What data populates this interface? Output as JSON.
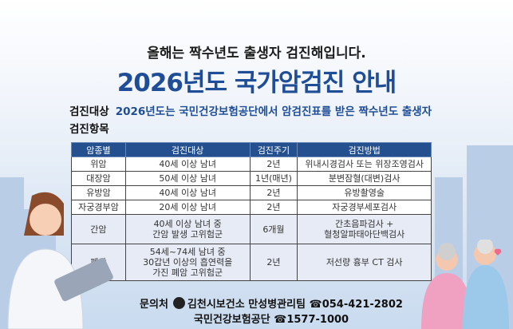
{
  "header": {
    "subtitle": "올해는 짝수년도 출생자 검진해입니다.",
    "title": "2026년도 국가암검진 안내"
  },
  "target": {
    "label": "검진대상",
    "text": "2026년도는 국민건강보험공단에서 암검진표를 받은 짝수년도 출생자"
  },
  "items_label": "검진항목",
  "table": {
    "headers": [
      "암종별",
      "검진대상",
      "검진주기",
      "검진방법"
    ],
    "rows": [
      [
        "위암",
        "40세 이상 남녀",
        "2년",
        "위내시경검사 또는 위장조영검사"
      ],
      [
        "대장암",
        "50세 이상 남녀",
        "1년(매년)",
        "분변잠혈(대변)검사"
      ],
      [
        "유방암",
        "40세 이상 남녀",
        "2년",
        "유방촬영술"
      ],
      [
        "자궁경부암",
        "20세 이상 남녀",
        "2년",
        "자궁경부세포검사"
      ],
      [
        "간암",
        "40세 이상 남녀 중\n간암 발생 고위험군",
        "6개월",
        "간초음파검사 +\n혈청알파태아단백검사"
      ],
      [
        "폐암",
        "54세~74세 남녀 중\n30갑년 이상의 흡연력을\n가진 폐암 고위험군",
        "2년",
        "저선량 흉부 CT 검사"
      ]
    ]
  },
  "contact": {
    "label": "문의처",
    "org1": "김천시보건소 만성병관리팀",
    "phone1": "☎054-421-2802",
    "org2": "국민건강보험공단",
    "phone2": "☎1577-1000"
  },
  "colors": {
    "header_bg": "#24508f",
    "title": "#1f4d96"
  }
}
